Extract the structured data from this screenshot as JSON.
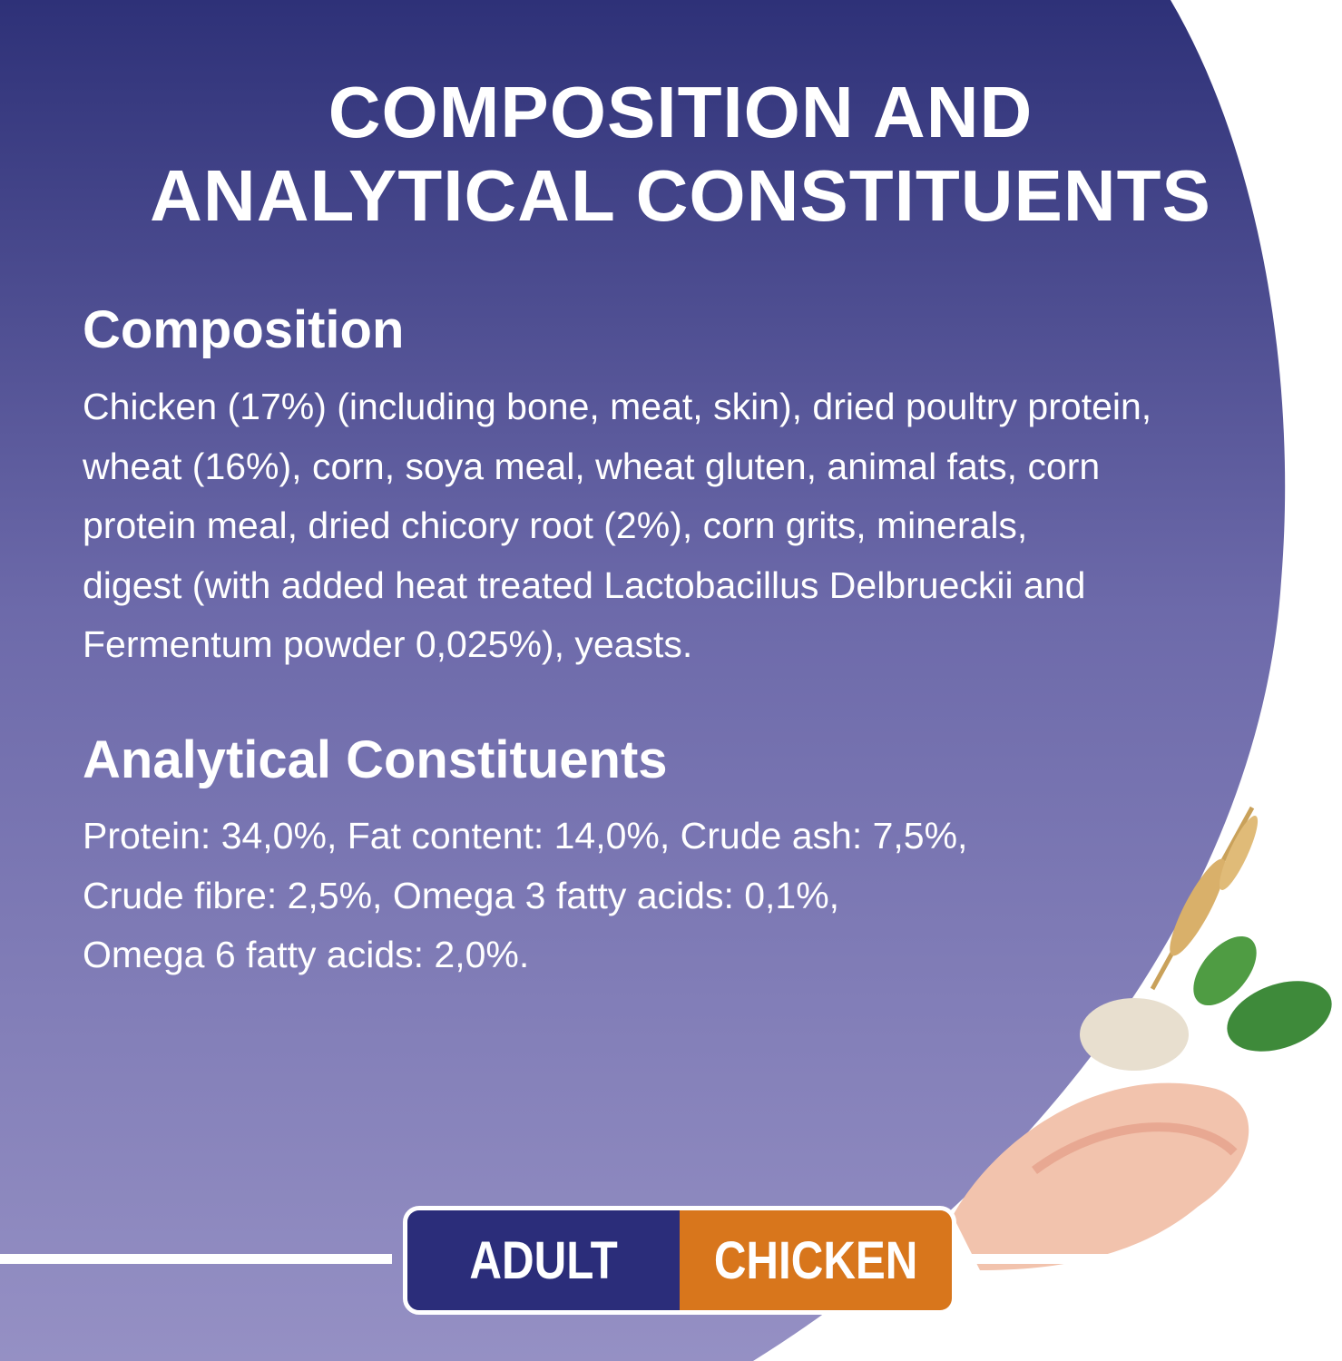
{
  "title_lines": [
    "COMPOSITION AND",
    "ANALYTICAL CONSTITUENTS"
  ],
  "composition": {
    "heading": "Composition",
    "lines": [
      "Chicken (17%) (including bone, meat, skin), dried poultry protein,",
      "wheat (16%), corn, soya meal, wheat gluten, animal fats, corn",
      "protein meal, dried chicory root (2%), corn grits, minerals,",
      "digest (with added heat treated Lactobacillus Delbrueckii and",
      "Fermentum powder 0,025%), yeasts."
    ]
  },
  "analytical": {
    "heading": "Analytical Constituents",
    "lines": [
      "Protein: 34,0%, Fat content: 14,0%, Crude ash: 7,5%,",
      "Crude fibre: 2,5%, Omega 3 fatty acids: 0,1%,",
      "Omega 6 fatty acids: 2,0%."
    ]
  },
  "badge": {
    "left": "ADULT",
    "right": "CHICKEN"
  },
  "colors": {
    "gradient_top": "#2e3178",
    "gradient_bottom": "#9590c4",
    "badge_left": "#2b2d7a",
    "badge_right": "#d8761c"
  }
}
